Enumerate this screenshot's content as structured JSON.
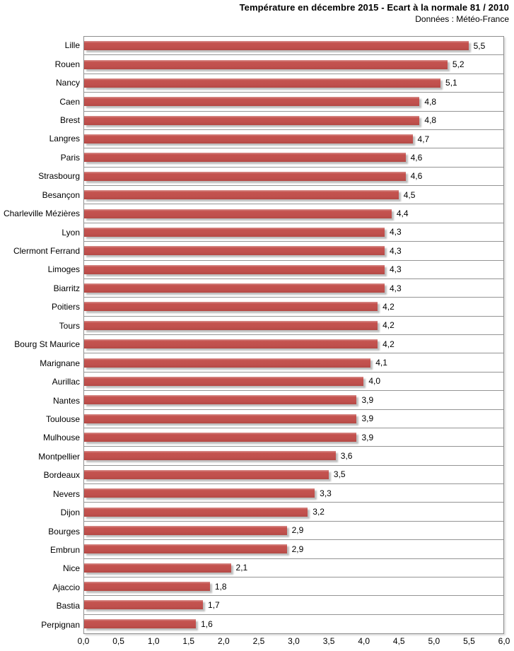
{
  "chart_data": {
    "type": "bar",
    "orientation": "horizontal",
    "title": "Température en décembre 2015 - Ecart à la normale 81 / 2010",
    "subtitle": "Données : Météo-France",
    "categories": [
      "Lille",
      "Rouen",
      "Nancy",
      "Caen",
      "Brest",
      "Langres",
      "Paris",
      "Strasbourg",
      "Besançon",
      "Charleville Mézières",
      "Lyon",
      "Clermont Ferrand",
      "Limoges",
      "Biarritz",
      "Poitiers",
      "Tours",
      "Bourg St Maurice",
      "Marignane",
      "Aurillac",
      "Nantes",
      "Toulouse",
      "Mulhouse",
      "Montpellier",
      "Bordeaux",
      "Nevers",
      "Dijon",
      "Bourges",
      "Embrun",
      "Nice",
      "Ajaccio",
      "Bastia",
      "Perpignan"
    ],
    "values": [
      5.5,
      5.2,
      5.1,
      4.8,
      4.8,
      4.7,
      4.6,
      4.6,
      4.5,
      4.4,
      4.3,
      4.3,
      4.3,
      4.3,
      4.2,
      4.2,
      4.2,
      4.1,
      4.0,
      3.9,
      3.9,
      3.9,
      3.6,
      3.5,
      3.3,
      3.2,
      2.9,
      2.9,
      2.1,
      1.8,
      1.7,
      1.6
    ],
    "value_labels": [
      "5,5",
      "5,2",
      "5,1",
      "4,8",
      "4,8",
      "4,7",
      "4,6",
      "4,6",
      "4,5",
      "4,4",
      "4,3",
      "4,3",
      "4,3",
      "4,3",
      "4,2",
      "4,2",
      "4,2",
      "4,1",
      "4,0",
      "3,9",
      "3,9",
      "3,9",
      "3,6",
      "3,5",
      "3,3",
      "3,2",
      "2,9",
      "2,9",
      "2,1",
      "1,8",
      "1,7",
      "1,6"
    ],
    "xlabel": "",
    "ylabel": "",
    "xlim": [
      0,
      6
    ],
    "xticks": [
      "0,0",
      "0,5",
      "1,0",
      "1,5",
      "2,0",
      "2,5",
      "3,0",
      "3,5",
      "4,0",
      "4,5",
      "5,0",
      "5,5",
      "6,0"
    ],
    "grid": "horizontal category separators only, no vertical gridlines",
    "legend": "none",
    "bar_color": "#C0504D",
    "separator_color": "#949494",
    "background_color": "#FFFFFF"
  }
}
